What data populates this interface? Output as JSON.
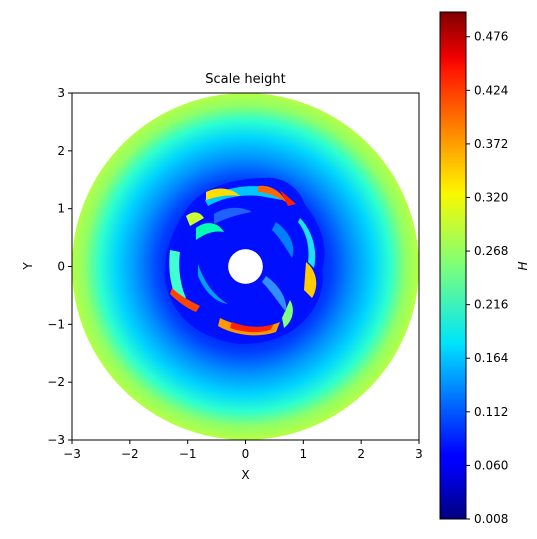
{
  "chart_data": {
    "type": "heatmap",
    "title": "Scale height",
    "xlabel": "X",
    "ylabel": "Y",
    "xlim": [
      -3,
      3
    ],
    "ylim": [
      -3,
      3
    ],
    "xticks": [
      -3,
      -2,
      -1,
      0,
      1,
      2,
      3
    ],
    "yticks": [
      -3,
      -2,
      -1,
      0,
      1,
      2,
      3
    ],
    "xtick_labels": [
      "−3",
      "−2",
      "−1",
      "0",
      "1",
      "2",
      "3"
    ],
    "ytick_labels": [
      "−3",
      "−2",
      "−1",
      "0",
      "1",
      "2",
      "3"
    ],
    "grid": false,
    "colormap": "jet",
    "colorbar": {
      "label": "H",
      "vmin": 0.008,
      "vmax": 0.5,
      "ticks": [
        0.008,
        0.06,
        0.112,
        0.164,
        0.216,
        0.268,
        0.32,
        0.372,
        0.424,
        0.476
      ],
      "tick_labels": [
        "0.008",
        "0.060",
        "0.112",
        "0.164",
        "0.216",
        "0.268",
        "0.320",
        "0.372",
        "0.424",
        "0.476"
      ]
    },
    "disk": {
      "inner_radius": 0.3,
      "outer_radius": 3.0,
      "value_at_edge": 0.29,
      "value_inner_region": 0.03,
      "turbulent_region_radius": 1.5
    }
  }
}
